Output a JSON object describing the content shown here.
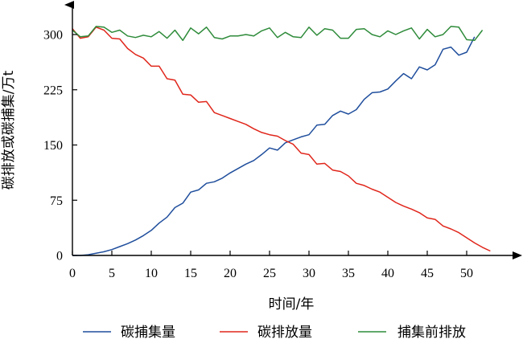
{
  "chart_data": {
    "type": "line",
    "xlabel": "时间/年",
    "ylabel": "碳排放或碳捕集/万t",
    "xlim": [
      0,
      55
    ],
    "ylim": [
      0,
      330
    ],
    "xticks": [
      "0",
      "5",
      "10",
      "15",
      "20",
      "25",
      "30",
      "35",
      "40",
      "45",
      "50"
    ],
    "yticks": [
      "0",
      "75",
      "150",
      "225",
      "300"
    ],
    "legend_position": "bottom",
    "x": [
      0,
      1,
      2,
      3,
      4,
      5,
      6,
      7,
      8,
      9,
      10,
      11,
      12,
      13,
      14,
      15,
      16,
      17,
      18,
      19,
      20,
      21,
      22,
      23,
      24,
      25,
      26,
      27,
      28,
      29,
      30,
      31,
      32,
      33,
      34,
      35,
      36,
      37,
      38,
      39,
      40,
      41,
      42,
      43,
      44,
      45,
      46,
      47,
      48,
      49,
      50,
      51,
      52,
      53
    ],
    "series": [
      {
        "name": "碳捕集量",
        "color": "#1f4e9c",
        "values": [
          0,
          0,
          1,
          3,
          5,
          8,
          12,
          16,
          21,
          27,
          34,
          44,
          52,
          65,
          71,
          86,
          89,
          98,
          100,
          105,
          112,
          118,
          124,
          129,
          137,
          146,
          143,
          153,
          157,
          161,
          164,
          177,
          178,
          190,
          196,
          192,
          198,
          212,
          221,
          222,
          226,
          237,
          247,
          240,
          256,
          252,
          259,
          280,
          283,
          272,
          276,
          297,
          null,
          null
        ]
      },
      {
        "name": "碳排放量",
        "color": "#e0261b",
        "values": [
          308,
          295,
          297,
          310,
          306,
          295,
          294,
          281,
          273,
          268,
          257,
          257,
          240,
          238,
          219,
          218,
          208,
          209,
          194,
          190,
          186,
          182,
          178,
          172,
          167,
          164,
          162,
          156,
          151,
          139,
          137,
          124,
          125,
          116,
          114,
          108,
          98,
          95,
          90,
          86,
          79,
          72,
          67,
          63,
          58,
          51,
          49,
          40,
          36,
          31,
          24,
          17,
          11,
          6
        ]
      },
      {
        "name": "捕集前排放",
        "color": "#2e8b3a",
        "values": [
          306,
          297,
          298,
          311,
          310,
          303,
          306,
          298,
          296,
          299,
          297,
          304,
          295,
          306,
          292,
          309,
          301,
          310,
          296,
          294,
          298,
          298,
          300,
          298,
          305,
          309,
          296,
          303,
          297,
          296,
          310,
          299,
          308,
          306,
          295,
          295,
          307,
          308,
          300,
          297,
          305,
          300,
          305,
          309,
          294,
          307,
          297,
          300,
          311,
          310,
          293,
          292,
          306,
          null
        ]
      }
    ]
  }
}
